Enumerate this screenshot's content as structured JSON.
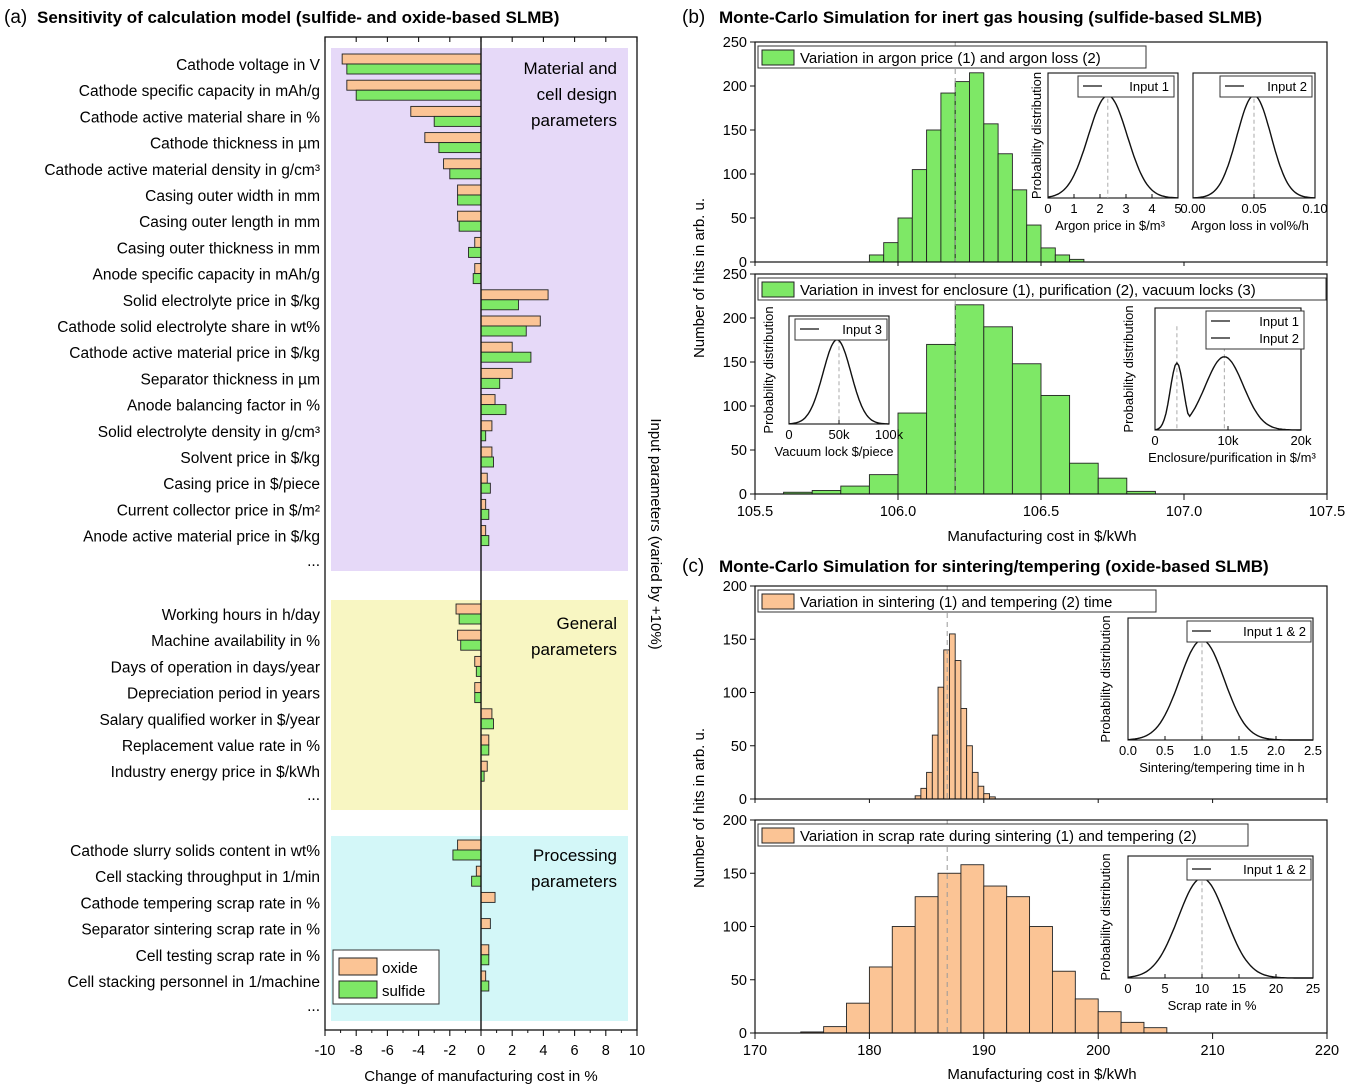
{
  "panel_a": {
    "label": "(a)",
    "title": "Sensitivity of calculation model (sulfide- and oxide-based SLMB)",
    "xlabel": "Change of manufacturing cost in %",
    "right_label": "Input parameters (varied by +10%)",
    "group_labels": {
      "material": [
        "Material and",
        "cell design",
        "parameters"
      ],
      "general": [
        "General",
        "parameters"
      ],
      "processing": [
        "Processing",
        "parameters"
      ]
    },
    "group_colors": {
      "material": "#e6d9f8",
      "general": "#f8f6c2",
      "processing": "#d3f7f8"
    },
    "ellipsis": "...",
    "legend": [
      "oxide",
      "sulfide"
    ]
  },
  "panel_b": {
    "label": "(b)",
    "title": "Monte-Carlo Simulation for inert gas housing (sulfide-based SLMB)",
    "ylabel": "Number of hits in arb. u.",
    "xlabel": "Manufacturing cost in $/kWh",
    "legend_top": "Variation in argon price (1) and argon loss (2)",
    "legend_bottom": "Variation in invest for enclosure (1), purification (2), vacuum locks (3)",
    "inset_ylabel": "Probability distribution",
    "inset1": {
      "legend": "Input 1",
      "xlabel": "Argon price in $/m³",
      "ticks": [
        "0",
        "1",
        "2",
        "3",
        "4",
        "5"
      ]
    },
    "inset2": {
      "legend": "Input 2",
      "xlabel": "Argon loss in vol%/h",
      "ticks": [
        "0.00",
        "0.05",
        "0.10"
      ]
    },
    "inset3": {
      "legend": "Input 3",
      "xlabel": "Vacuum lock $/piece",
      "ticks": [
        "0",
        "50k",
        "100k"
      ]
    },
    "inset4": {
      "legend": [
        "Input 1",
        "Input 2"
      ],
      "xlabel": "Enclosure/purification in $/m³",
      "ticks": [
        "0",
        "10k",
        "20k"
      ]
    }
  },
  "panel_c": {
    "label": "(c)",
    "title": "Monte-Carlo Simulation for sintering/tempering (oxide-based SLMB)",
    "ylabel": "Number of hits in arb. u.",
    "xlabel": "Manufacturing cost in $/kWh",
    "legend_top": "Variation in sintering (1) and tempering (2) time",
    "legend_bottom": "Variation in scrap rate during sintering (1) and tempering (2)",
    "inset_ylabel": "Probability distribution",
    "inset1": {
      "legend": "Input 1 & 2",
      "xlabel": "Sintering/tempering time in h",
      "ticks": [
        "0.0",
        "0.5",
        "1.0",
        "1.5",
        "2.0",
        "2.5"
      ]
    },
    "inset2": {
      "legend": "Input 1 & 2",
      "xlabel": "Scrap rate in %",
      "ticks": [
        "0",
        "5",
        "10",
        "15",
        "20",
        "25"
      ]
    }
  },
  "colors": {
    "oxide": "#fbc495",
    "sulfide": "#7ee866",
    "edge": "#222222"
  },
  "chart_data": [
    {
      "type": "bar",
      "orientation": "horizontal",
      "title": "Sensitivity of calculation model (sulfide- and oxide-based SLMB)",
      "xlabel": "Change of manufacturing cost in %",
      "xlim": [
        -10,
        10
      ],
      "xticks": [
        -10,
        -8,
        -6,
        -4,
        -2,
        0,
        2,
        4,
        6,
        8,
        10
      ],
      "groups": [
        {
          "name": "Material and cell design parameters",
          "categories": [
            "Cathode voltage in V",
            "Cathode specific capacity in mAh/g",
            "Cathode active material share in %",
            "Cathode thickness in µm",
            "Cathode active material density in g/cm³",
            "Casing outer width in mm",
            "Casing outer length in mm",
            "Casing outer thickness in mm",
            "Anode specific capacity in mAh/g",
            "Solid electrolyte price in $/kg",
            "Cathode solid electrolyte share in wt%",
            "Cathode active material price in $/kg",
            "Separator thickness in µm",
            "Anode balancing factor in %",
            "Solid electrolyte density in g/cm³",
            "Solvent price in $/kg",
            "Casing price in $/piece",
            "Current collector price in $/m²",
            "Anode active material price in $/kg"
          ],
          "oxide": [
            -8.9,
            -8.6,
            -4.5,
            -3.6,
            -2.4,
            -1.5,
            -1.5,
            -0.4,
            -0.4,
            4.3,
            3.8,
            2.0,
            2.0,
            0.9,
            0.7,
            0.7,
            0.4,
            0.3,
            0.3
          ],
          "sulfide": [
            -8.6,
            -8.0,
            -3.0,
            -2.7,
            -2.0,
            -1.5,
            -1.4,
            -0.8,
            -0.5,
            2.4,
            2.9,
            3.2,
            1.2,
            1.6,
            0.3,
            0.8,
            0.6,
            0.5,
            0.5
          ]
        },
        {
          "name": "General parameters",
          "categories": [
            "Working hours in h/day",
            "Machine availability in %",
            "Days of operation in days/year",
            "Depreciation period in years",
            "Salary qualified worker in $/year",
            "Replacement value rate in %",
            "Industry energy price in $/kWh"
          ],
          "oxide": [
            -1.6,
            -1.5,
            -0.4,
            -0.4,
            0.7,
            0.5,
            0.4
          ],
          "sulfide": [
            -1.4,
            -1.3,
            -0.3,
            -0.4,
            0.8,
            0.5,
            0.2
          ]
        },
        {
          "name": "Processing parameters",
          "categories": [
            "Cathode slurry solids content in wt%",
            "Cell stacking throughput in 1/min",
            "Cathode tempering scrap rate in %",
            "Separator sintering scrap rate in %",
            "Cell testing scrap rate in %",
            "Cell stacking personnel in 1/machine"
          ],
          "oxide": [
            -1.5,
            -0.3,
            0.9,
            0.6,
            0.5,
            0.3
          ],
          "sulfide": [
            -1.8,
            -0.6,
            0.0,
            0.0,
            0.5,
            0.5
          ]
        }
      ],
      "legend": [
        "oxide",
        "sulfide"
      ],
      "legend_position": "bottom-left"
    },
    {
      "type": "histogram",
      "title": "Monte-Carlo Simulation for inert gas housing (sulfide-based SLMB)",
      "series": "Variation in argon price (1) and argon loss (2)",
      "xlabel": "Manufacturing cost in $/kWh",
      "ylabel": "Number of hits in arb. u.",
      "xlim": [
        105.5,
        107.5
      ],
      "ylim": [
        0,
        250
      ],
      "bin_starts": [
        105.9,
        105.95,
        106.0,
        106.05,
        106.1,
        106.15,
        106.2,
        106.25,
        106.3,
        106.35,
        106.4,
        106.45,
        106.5,
        106.55,
        106.6
      ],
      "counts": [
        8,
        22,
        50,
        105,
        150,
        192,
        205,
        215,
        157,
        123,
        82,
        42,
        16,
        8,
        3
      ],
      "bin_width": 0.05,
      "mean": 106.2
    },
    {
      "type": "histogram",
      "title": "Monte-Carlo Simulation for inert gas housing (sulfide-based SLMB)",
      "series": "Variation in invest for enclosure (1), purification (2), vacuum locks (3)",
      "xlabel": "Manufacturing cost in $/kWh",
      "ylabel": "Number of hits in arb. u.",
      "xlim": [
        105.5,
        107.5
      ],
      "ylim": [
        0,
        250
      ],
      "bin_starts": [
        105.6,
        105.7,
        105.8,
        105.9,
        106.0,
        106.1,
        106.2,
        106.3,
        106.4,
        106.5,
        106.6,
        106.7,
        106.8
      ],
      "counts": [
        2,
        4,
        9,
        22,
        92,
        170,
        215,
        190,
        148,
        112,
        35,
        18,
        3
      ],
      "bin_width": 0.1,
      "mean": 106.2
    },
    {
      "type": "histogram",
      "title": "Monte-Carlo Simulation for sintering/tempering (oxide-based SLMB)",
      "series": "Variation in sintering (1) and tempering (2) time",
      "xlabel": "Manufacturing cost in $/kWh",
      "ylabel": "Number of hits in arb. u.",
      "xlim": [
        170,
        220
      ],
      "ylim": [
        0,
        200
      ],
      "bin_starts": [
        184,
        184.5,
        185,
        185.5,
        186,
        186.5,
        187,
        187.5,
        188,
        188.5,
        189,
        189.5,
        190,
        190.5
      ],
      "counts": [
        3,
        10,
        25,
        60,
        105,
        140,
        155,
        130,
        85,
        50,
        25,
        12,
        5,
        2
      ],
      "bin_width": 0.5,
      "mean": 186.8
    },
    {
      "type": "histogram",
      "title": "Monte-Carlo Simulation for sintering/tempering (oxide-based SLMB)",
      "series": "Variation in scrap rate during sintering (1) and tempering (2)",
      "xlabel": "Manufacturing cost in $/kWh",
      "ylabel": "Number of hits in arb. u.",
      "xlim": [
        170,
        220
      ],
      "ylim": [
        0,
        200
      ],
      "bin_starts": [
        174,
        176,
        178,
        180,
        182,
        184,
        186,
        188,
        190,
        192,
        194,
        196,
        198,
        200,
        202,
        204
      ],
      "counts": [
        1,
        6,
        28,
        62,
        100,
        128,
        150,
        158,
        138,
        128,
        100,
        58,
        32,
        20,
        10,
        5
      ],
      "bin_width": 2,
      "mean": 186.8
    }
  ]
}
